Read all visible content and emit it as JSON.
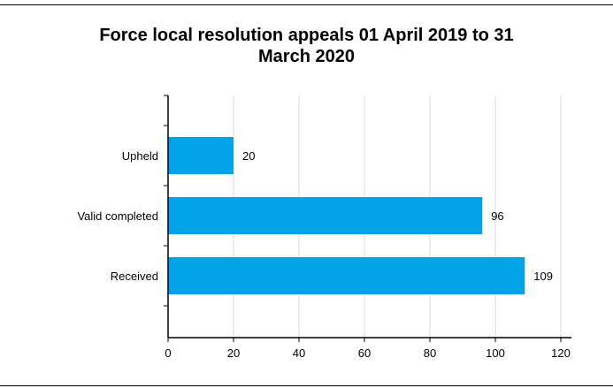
{
  "chart_data": {
    "type": "bar",
    "orientation": "horizontal",
    "title_lines": [
      "Force local resolution appeals 01 April 2019 to 31",
      "March 2020"
    ],
    "categories": [
      "Upheld",
      "Valid completed",
      "Received"
    ],
    "values": [
      20,
      96,
      109
    ],
    "xlim": [
      0,
      120
    ],
    "xticks": [
      "0",
      "20",
      "40",
      "60",
      "80",
      "100",
      "120"
    ],
    "grid": "vertical",
    "colors": {
      "bar": "#00A2E8",
      "grid": "#D9D9D9",
      "axis": "#000000"
    },
    "xlabel": "",
    "ylabel": ""
  }
}
